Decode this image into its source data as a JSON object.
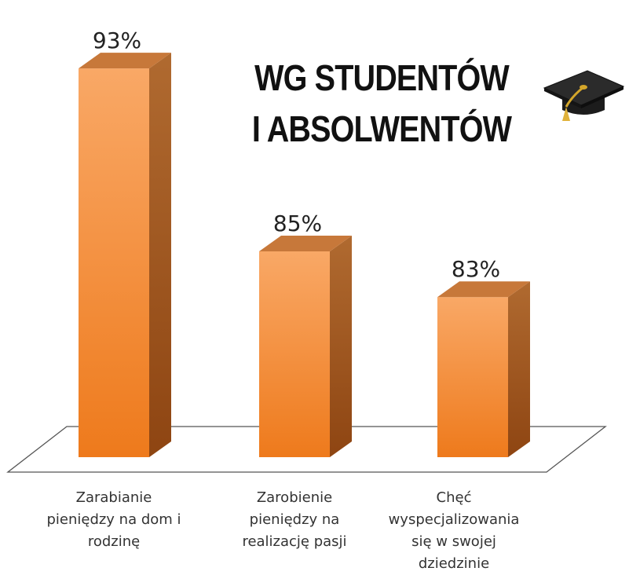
{
  "title": {
    "line1": "WG STUDENTÓW",
    "line2": "I ABSOLWENTÓW"
  },
  "icons": {
    "title_icon": "graduation-cap-icon"
  },
  "colors": {
    "bar_front": "#f28a30",
    "bar_side": "#a85a1c",
    "bar_top": "#c7783a"
  },
  "chart_data": {
    "type": "bar",
    "categories": [
      "Zarabianie\npieniędzy na dom i\nrodzinę",
      "Zarobienie\npieniędzy na\nrealizację pasji",
      "Chęć\nwyspecjalizowania\nsię w swojej\ndziedzinie"
    ],
    "values": [
      93,
      85,
      83
    ],
    "data_labels": [
      "93%",
      "85%",
      "83%"
    ],
    "ylim": [
      76,
      94
    ],
    "grid": false,
    "legend": "none"
  }
}
